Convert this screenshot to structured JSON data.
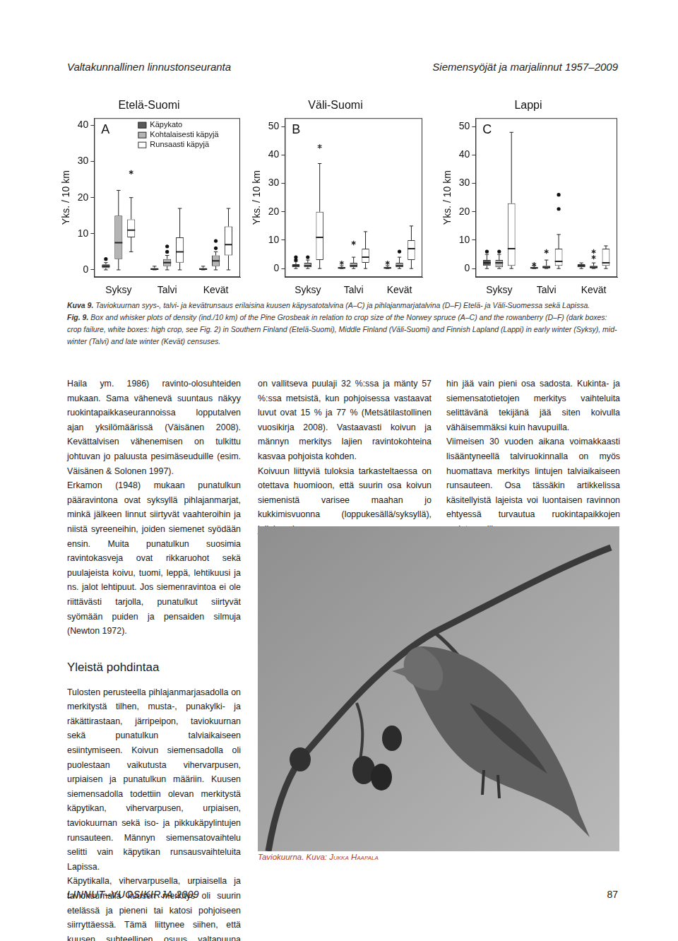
{
  "header": {
    "left": "Valtakunnallinen linnustonseuranta",
    "right": "Siemensyöjät ja marjalinnut 1957–2009"
  },
  "chart_data": [
    {
      "type": "box",
      "label": "A",
      "title": "Etelä-Suomi",
      "y_label": "Yks. / 10 km",
      "categories": [
        "Syksy",
        "Talvi",
        "Kevät"
      ],
      "ylim": [
        -2,
        42
      ],
      "yticks": [
        0,
        10,
        20,
        30,
        40
      ],
      "grid": false,
      "legend": "top-left",
      "series": [
        {
          "name": "Käpykato",
          "color": "#5a5a5a",
          "values": [
            {
              "min": 0,
              "q1": 0.5,
              "median": 1,
              "q3": 1.5,
              "max": 2,
              "outliers": [
                3
              ]
            },
            {
              "min": 0,
              "q1": 0,
              "median": 0.2,
              "q3": 0.5,
              "max": 1
            },
            {
              "min": 0,
              "q1": 0,
              "median": 0.2,
              "q3": 0.5,
              "max": 1
            }
          ]
        },
        {
          "name": "Kohtalaisesti käpyjä",
          "color": "#b4b4b4",
          "values": [
            {
              "min": 0,
              "q1": 3,
              "median": 7.5,
              "q3": 15,
              "max": 22
            },
            {
              "min": 0,
              "q1": 1,
              "median": 2,
              "q3": 3,
              "max": 4,
              "outliers": [
                5,
                6.5
              ]
            },
            {
              "min": 0,
              "q1": 1,
              "median": 2.5,
              "q3": 4,
              "max": 5,
              "outliers": [
                6,
                8
              ]
            }
          ]
        },
        {
          "name": "Runsaasti käpyjä",
          "color": "#ffffff",
          "values": [
            {
              "min": 5,
              "q1": 9,
              "median": 11,
              "q3": 14,
              "max": 20,
              "extremes": [
                27
              ]
            },
            {
              "min": 0,
              "q1": 2,
              "median": 5,
              "q3": 9,
              "max": 17
            },
            {
              "min": 0,
              "q1": 4,
              "median": 7,
              "q3": 12,
              "max": 17
            }
          ]
        }
      ]
    },
    {
      "type": "box",
      "label": "B",
      "title": "Väli-Suomi",
      "y_label": "Yks. / 10 km",
      "categories": [
        "Syksy",
        "Talvi",
        "Kevät"
      ],
      "ylim": [
        -3,
        53
      ],
      "yticks": [
        0,
        10,
        20,
        30,
        40,
        50
      ],
      "grid": false,
      "series": [
        {
          "color": "#5a5a5a",
          "values": [
            {
              "min": 0,
              "q1": 0.5,
              "median": 1,
              "q3": 1.5,
              "max": 2.5,
              "outliers": [
                3,
                4
              ]
            },
            {
              "min": 0,
              "q1": 0,
              "median": 0.2,
              "q3": 0.5,
              "max": 1,
              "extremes": [
                2
              ]
            },
            {
              "min": 0,
              "q1": 0,
              "median": 0.2,
              "q3": 0.5,
              "max": 1,
              "extremes": [
                2
              ]
            }
          ]
        },
        {
          "color": "#b4b4b4",
          "values": [
            {
              "min": 0,
              "q1": 0.5,
              "median": 1,
              "q3": 2,
              "max": 3,
              "outliers": [
                4
              ]
            },
            {
              "min": 0,
              "q1": 0.5,
              "median": 1,
              "q3": 2,
              "max": 4,
              "extremes": [
                9
              ]
            },
            {
              "min": 0,
              "q1": 0.5,
              "median": 1,
              "q3": 2,
              "max": 4,
              "outliers": [
                6
              ]
            }
          ]
        },
        {
          "color": "#ffffff",
          "values": [
            {
              "min": 0,
              "q1": 3,
              "median": 11,
              "q3": 20,
              "max": 37,
              "extremes": [
                43
              ]
            },
            {
              "min": 0,
              "q1": 2,
              "median": 4,
              "q3": 7,
              "max": 13
            },
            {
              "min": 0,
              "q1": 3,
              "median": 7,
              "q3": 10,
              "max": 15
            }
          ]
        }
      ]
    },
    {
      "type": "box",
      "label": "C",
      "title": "Lappi",
      "y_label": "Yks. / 10 km",
      "categories": [
        "Syksy",
        "Talvi",
        "Kevät"
      ],
      "ylim": [
        -3,
        53
      ],
      "yticks": [
        0,
        10,
        20,
        30,
        40,
        50
      ],
      "grid": false,
      "series": [
        {
          "color": "#5a5a5a",
          "values": [
            {
              "min": 0,
              "q1": 1,
              "median": 2,
              "q3": 3,
              "max": 5,
              "outliers": [
                6
              ]
            },
            {
              "min": 0,
              "q1": 0,
              "median": 0.2,
              "q3": 0.5,
              "max": 1,
              "extremes": [
                1.5
              ]
            },
            {
              "min": 0,
              "q1": 0.5,
              "median": 1,
              "q3": 1.5,
              "max": 2
            }
          ]
        },
        {
          "color": "#b4b4b4",
          "values": [
            {
              "min": 0,
              "q1": 0.5,
              "median": 2,
              "q3": 3,
              "max": 5,
              "outliers": [
                6
              ]
            },
            {
              "min": 0,
              "q1": 0,
              "median": 0.5,
              "q3": 1,
              "max": 3,
              "extremes": [
                6
              ]
            },
            {
              "min": 0,
              "q1": 0,
              "median": 0.5,
              "q3": 1,
              "max": 2,
              "extremes": [
                4,
                6
              ]
            }
          ]
        },
        {
          "color": "#ffffff",
          "values": [
            {
              "min": 0,
              "q1": 1,
              "median": 7,
              "q3": 23,
              "max": 48
            },
            {
              "min": 0,
              "q1": 1,
              "median": 2.5,
              "q3": 7,
              "max": 12,
              "outliers": [
                21,
                26
              ]
            },
            {
              "min": 0,
              "q1": 1,
              "median": 2,
              "q3": 7,
              "max": 8
            }
          ]
        }
      ]
    }
  ],
  "caption": {
    "fi_label": "Kuva 9.",
    "fi": "Taviokuurnan syys-, talvi- ja kevätrunsaus erilaisina kuusen käpysatotalvina (A–C) ja pihlajanmarjatalvina (D–F) Etelä- ja Väli-Suomessa sekä Lapissa.",
    "en_label": "Fig. 9.",
    "en": "Box and whisker plots of density (ind./10 km) of the Pine Grosbeak in relation to crop size of the Norwey spruce (A–C) and the rowanberry (D–F) (dark boxes: crop failure, white boxes: high crop, see Fig. 2) in Southern Finland (Etelä-Suomi), Middle Finland (Väli-Suomi) and Finnish Lapland (Lappi) in early winter (Syksy), mid-winter (Talvi) and late winter (Kevät) censuses."
  },
  "columns": [
    [
      {
        "type": "p",
        "text": "Haila ym. 1986) ravinto-olosuhteiden mukaan. Sama vähenevä suuntaus näkyy ruokintapaikkaseurannoissa lopputalven ajan yksilömäärissä (Väisänen 2008). Kevättalvisen vähenemisen on tulkittu johtuvan jo paluusta pesimäseuduille (esim. Väisänen & Solonen 1997)."
      },
      {
        "type": "p",
        "text": "Erkamon (1948) mukaan punatulkun pääravintona ovat syksyllä pihlajanmarjat, minkä jälkeen linnut siirtyvät vaahteroihin ja niistä syreeneihin, joiden siemenet syödään ensin. Muita punatulkun suosimia ravintokasveja ovat rikkaruohot sekä puulajeista koivu, tuomi, leppä, lehtikuusi ja ns. jalot lehtipuut. Jos siemenravintoa ei ole riittävästi tarjolla, punatulkut siirtyvät syömään puiden ja pensaiden silmuja (Newton 1972)."
      },
      {
        "type": "h",
        "text": "Yleistä pohdintaa"
      },
      {
        "type": "p",
        "text": "Tulosten perusteella pihlajanmarjasadolla on merkitystä tilhen, musta-, punakylki- ja räkättirastaan, järripeipon, taviokuurnan sekä punatulkun talviaikaiseen esiintymiseen. Koivun siemensadolla oli puolestaan vaikutusta vihervarpusen, urpiaisen ja punatulkun määriin. Kuusen siemensadolla todettiin olevan merkitystä käpytikan, vihervarpusen, urpiaisen, taviokuurnan sekä iso- ja pikkukäpylintujen runsauteen. Männyn siemensatovaihtelu selitti vain käpytikan runsausvaihteluita Lapissa."
      },
      {
        "type": "p",
        "text": "Käpytikalla, vihervarpusella, urpiaisella ja taviokuurnalla kuusen merkitys oli suurin etelässä ja pieneni tai katosi pohjoiseen siirryttäessä. Tämä liittynee siihen, että kuusen suhteellinen osuus valtapuuna pienenee pohjoista kohden. Etelä-Suomessa kuusi"
      }
    ],
    [
      {
        "type": "p",
        "text": "on vallitseva puulaji 32 %:ssa ja mänty 57 %:ssa metsistä, kun pohjoisessa vastaavat luvut ovat 15 % ja 77 % (Metsätilastollinen vuosikirja 2008). Vastaavasti koivun ja männyn merkitys lajien ravintokohteina kasvaa pohjoista kohden."
      },
      {
        "type": "p",
        "text": "Koivuun liittyviä tuloksia tarkasteltaessa on otettava huomioon, että suurin osa koivun siemenistä varisee maahan jo kukkimisvuonna (loppukesällä/syksyllä), jolloin pui-"
      }
    ],
    [
      {
        "type": "p",
        "text": "hin jää vain pieni osa sadosta. Kukinta- ja siemensatotietojen merkitys vaihteluita selittävänä tekijänä jää siten koivulla vähäisemmäksi kuin havupuilla."
      },
      {
        "type": "p",
        "text": "Viimeisen 30 vuoden aikana voimakkaasti lisääntyneellä talviruokinnalla on myös huomattava merkitys lintujen talviaikaiseen runsauteen. Osa tässäkin artikkelissa käsitellyistä lajeista voi luontaisen ravinnon ehtyessä turvautua ruokintapaikkojen ravintoapajiin."
      }
    ]
  ],
  "photo_caption": {
    "subject": "Taviokuurna.",
    "credit_label": "Kuva:",
    "credit": "Jukka Haapala"
  },
  "footer": {
    "left": "LINNUT–VUOSIKIRJA 2009",
    "right": "87"
  }
}
